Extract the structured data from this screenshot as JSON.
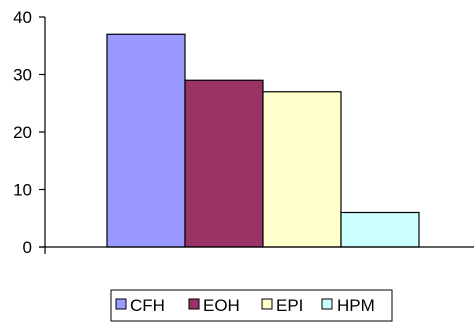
{
  "chart_data": {
    "type": "bar",
    "title": "",
    "xlabel": "",
    "ylabel": "",
    "ylim": [
      0,
      40
    ],
    "yticks": [
      0,
      10,
      20,
      30,
      40
    ],
    "grid": false,
    "legend_position": "bottom",
    "series": [
      {
        "name": "CFH",
        "value": 37,
        "color": "#9999ff"
      },
      {
        "name": "EOH",
        "value": 29,
        "color": "#993366"
      },
      {
        "name": "EPI",
        "value": 27,
        "color": "#ffffcc"
      },
      {
        "name": "HPM",
        "value": 6,
        "color": "#ccffff"
      }
    ]
  }
}
